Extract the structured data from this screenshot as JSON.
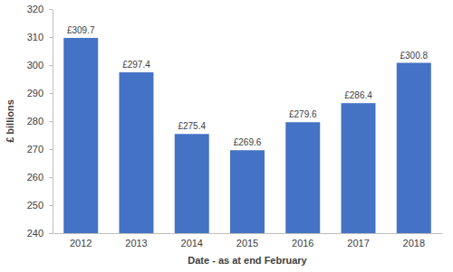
{
  "chart_data": {
    "type": "bar",
    "categories": [
      "2012",
      "2013",
      "2014",
      "2015",
      "2016",
      "2017",
      "2018"
    ],
    "values": [
      309.7,
      297.4,
      275.4,
      269.6,
      279.6,
      286.4,
      300.8
    ],
    "value_labels": [
      "£309.7",
      "£297.4",
      "£275.4",
      "£269.6",
      "£279.6",
      "£286.4",
      "£300.8"
    ],
    "color": "#4472c4",
    "x_label": "Date - as at end February",
    "y_label": "£ billions",
    "ylim": [
      240,
      320
    ],
    "yticks": [
      240,
      250,
      260,
      270,
      280,
      290,
      300,
      310,
      320
    ],
    "grid": false,
    "data_labels": true
  }
}
